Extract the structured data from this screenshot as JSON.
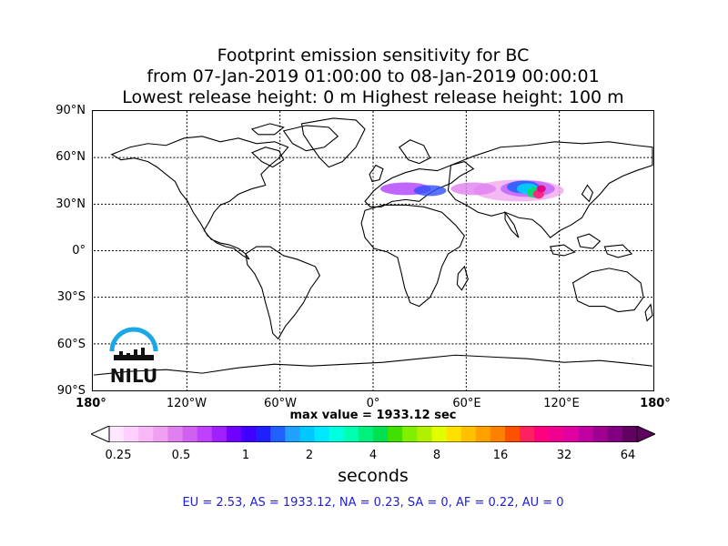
{
  "title": {
    "line1": "Footprint emission sensitivity for BC",
    "line2": "from 07-Jan-2019 01:00:00 to 08-Jan-2019 00:00:01",
    "line3": "Lowest release height: 0 m       Highest release height: 100 m"
  },
  "lat_labels": [
    "90°N",
    "60°N",
    "30°N",
    "0°",
    "30°S",
    "60°S",
    "90°S"
  ],
  "lon_labels": [
    "180°",
    "120°W",
    "60°W",
    "0°",
    "60°E",
    "120°E",
    "180°"
  ],
  "max_value": "max value = 1933.12 sec",
  "colorbar": {
    "ticks": [
      "0.25",
      "0.5",
      "1",
      "2",
      "4",
      "8",
      "16",
      "32",
      "64"
    ],
    "units": "seconds"
  },
  "regions": "EU = 2.53,  AS = 1933.12,  NA = 0.23,  SA = 0,  AF = 0.22,  AU = 0",
  "logo": {
    "text": "NILU",
    "color": "#1aa7e6"
  }
}
